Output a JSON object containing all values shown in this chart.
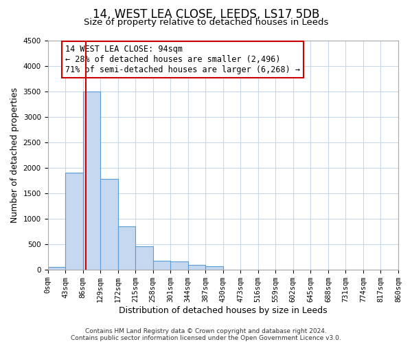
{
  "title": "14, WEST LEA CLOSE, LEEDS, LS17 5DB",
  "subtitle": "Size of property relative to detached houses in Leeds",
  "xlabel": "Distribution of detached houses by size in Leeds",
  "ylabel": "Number of detached properties",
  "bar_color": "#c5d8f0",
  "bar_edge_color": "#5b9bd5",
  "background_color": "#ffffff",
  "grid_color": "#c8d8e8",
  "property_size": 94,
  "property_line_color": "#cc0000",
  "annotation_line1": "14 WEST LEA CLOSE: 94sqm",
  "annotation_line2": "← 28% of detached houses are smaller (2,496)",
  "annotation_line3": "71% of semi-detached houses are larger (6,268) →",
  "annotation_box_color": "#ffffff",
  "annotation_box_edge": "#cc0000",
  "bin_edges": [
    0,
    43,
    86,
    129,
    172,
    215,
    258,
    301,
    344,
    387,
    430,
    473,
    516,
    559,
    602,
    645,
    688,
    731,
    774,
    817,
    860
  ],
  "bar_heights": [
    50,
    1900,
    3500,
    1780,
    850,
    460,
    175,
    155,
    95,
    60,
    0,
    0,
    0,
    0,
    0,
    0,
    0,
    0,
    0,
    0
  ],
  "ylim": [
    0,
    4500
  ],
  "yticks": [
    0,
    500,
    1000,
    1500,
    2000,
    2500,
    3000,
    3500,
    4000,
    4500
  ],
  "footer_text": "Contains HM Land Registry data © Crown copyright and database right 2024.\nContains public sector information licensed under the Open Government Licence v3.0.",
  "title_fontsize": 12,
  "subtitle_fontsize": 9.5,
  "axis_label_fontsize": 9,
  "tick_fontsize": 7.5,
  "annotation_fontsize": 8.5,
  "footer_fontsize": 6.5
}
